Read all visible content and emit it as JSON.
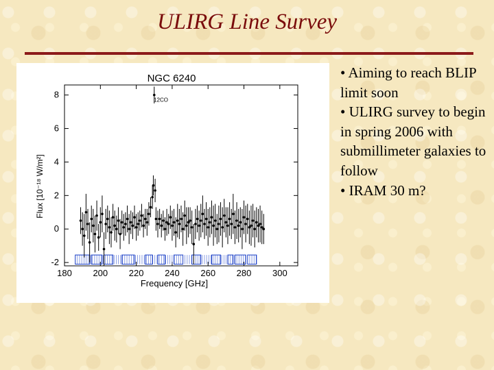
{
  "slide": {
    "title": "ULIRG Line Survey",
    "accent_color": "#7a0c0c"
  },
  "bullets": [
    "• Aiming to reach BLIP limit soon",
    "• ULIRG survey to begin in spring 2006 with submillimeter galaxies to follow",
    "• IRAM 30 m?"
  ],
  "chart_data": {
    "type": "line",
    "title": "NGC 6240",
    "xlabel": "Frequency [GHz]",
    "ylabel": "Flux [10⁻¹⁸ W/m²]",
    "xlim": [
      180,
      310
    ],
    "ylim": [
      -2.2,
      8.6
    ],
    "xticks": [
      180,
      200,
      220,
      240,
      260,
      280,
      300
    ],
    "yticks": [
      -2,
      0,
      2,
      4,
      6,
      8
    ],
    "grid": false,
    "annotations": [
      {
        "label": "12CO",
        "x": 230.5,
        "y": 7.6
      }
    ],
    "series": [
      {
        "style": "points-with-errorbars",
        "x": [
          189,
          190,
          191,
          192,
          193,
          194,
          195,
          196,
          197,
          198,
          199,
          200,
          201,
          202,
          203,
          204,
          205,
          206,
          207,
          208,
          209,
          210,
          211,
          212,
          213,
          214,
          215,
          216,
          217,
          218,
          219,
          220,
          221,
          222,
          223,
          224,
          225,
          226,
          227,
          228,
          229,
          229.5,
          230,
          230.5,
          231,
          232,
          233,
          234,
          235,
          236,
          237,
          238,
          239,
          240,
          241,
          242,
          243,
          244,
          245,
          246,
          247,
          248,
          249,
          250,
          251,
          252,
          253,
          254,
          255,
          256,
          257,
          258,
          259,
          260,
          261,
          262,
          263,
          264,
          265,
          266,
          267,
          268,
          269,
          270,
          271,
          272,
          273,
          274,
          275,
          276,
          277,
          278,
          279,
          280,
          281,
          282,
          283,
          284,
          285,
          286,
          287,
          288,
          289,
          290,
          291
        ],
        "y": [
          0.5,
          0.0,
          -0.4,
          1.0,
          0.3,
          -0.8,
          0.6,
          0.2,
          -0.3,
          0.8,
          -0.5,
          0.4,
          0.9,
          -1.2,
          0.3,
          0.6,
          0.1,
          -0.2,
          0.7,
          0.2,
          0.0,
          0.5,
          -0.3,
          0.4,
          0.1,
          0.3,
          0.6,
          0.0,
          0.4,
          0.2,
          0.7,
          0.1,
          0.3,
          0.5,
          0.8,
          0.2,
          0.6,
          0.4,
          0.9,
          1.3,
          1.9,
          2.6,
          8.0,
          2.3,
          0.6,
          0.3,
          0.6,
          0.2,
          0.5,
          0.0,
          0.4,
          0.3,
          0.7,
          0.2,
          0.4,
          -0.2,
          0.5,
          0.3,
          0.6,
          0.0,
          0.8,
          0.2,
          0.4,
          0.5,
          0.1,
          -0.9,
          0.3,
          0.6,
          0.2,
          0.5,
          0.9,
          0.3,
          0.6,
          0.1,
          0.4,
          0.7,
          0.2,
          0.5,
          0.0,
          0.3,
          0.6,
          0.1,
          0.8,
          0.4,
          0.2,
          0.6,
          0.3,
          0.9,
          0.1,
          0.5,
          0.2,
          0.4,
          0.0,
          0.7,
          0.3,
          0.6,
          0.1,
          0.2,
          0.5,
          0.0,
          0.4,
          0.2,
          0.3,
          0.1,
          0.0
        ],
        "yerr": [
          0.8,
          1.0,
          1.3,
          1.1,
          0.9,
          1.2,
          0.8,
          1.0,
          1.1,
          0.9,
          0.8,
          0.9,
          1.1,
          1.0,
          0.9,
          0.8,
          1.0,
          0.9,
          0.8,
          0.9,
          0.8,
          0.8,
          0.9,
          0.7,
          0.8,
          0.7,
          0.8,
          0.9,
          0.7,
          0.8,
          0.7,
          0.8,
          0.7,
          0.6,
          0.7,
          0.7,
          0.6,
          0.8,
          0.7,
          0.6,
          0.7,
          0.6,
          0.5,
          0.7,
          0.7,
          0.8,
          0.6,
          0.7,
          0.6,
          0.7,
          0.8,
          0.6,
          0.7,
          0.9,
          0.8,
          0.9,
          1.0,
          0.9,
          0.8,
          1.0,
          0.9,
          1.1,
          0.9,
          0.8,
          1.0,
          1.2,
          0.9,
          0.8,
          0.9,
          1.0,
          1.1,
          0.9,
          1.0,
          1.1,
          0.9,
          1.0,
          1.2,
          1.0,
          0.9,
          1.1,
          1.0,
          1.2,
          1.0,
          0.9,
          1.1,
          1.0,
          0.9,
          1.2,
          1.0,
          1.1,
          1.0,
          0.9,
          1.2,
          1.0,
          1.1,
          0.9,
          1.0,
          1.2,
          1.0,
          1.1,
          0.9,
          1.0,
          1.1,
          1.0,
          0.9
        ]
      }
    ],
    "bandpass_markers": {
      "y_low": -2.1,
      "y_high": -1.55,
      "segments": [
        [
          186,
          194
        ],
        [
          195,
          201
        ],
        [
          202,
          207
        ],
        [
          212,
          219
        ],
        [
          225,
          229
        ],
        [
          232,
          236
        ],
        [
          241,
          246
        ],
        [
          251,
          256
        ],
        [
          262,
          267
        ],
        [
          271,
          274
        ],
        [
          275,
          281
        ],
        [
          282,
          287
        ]
      ]
    }
  }
}
